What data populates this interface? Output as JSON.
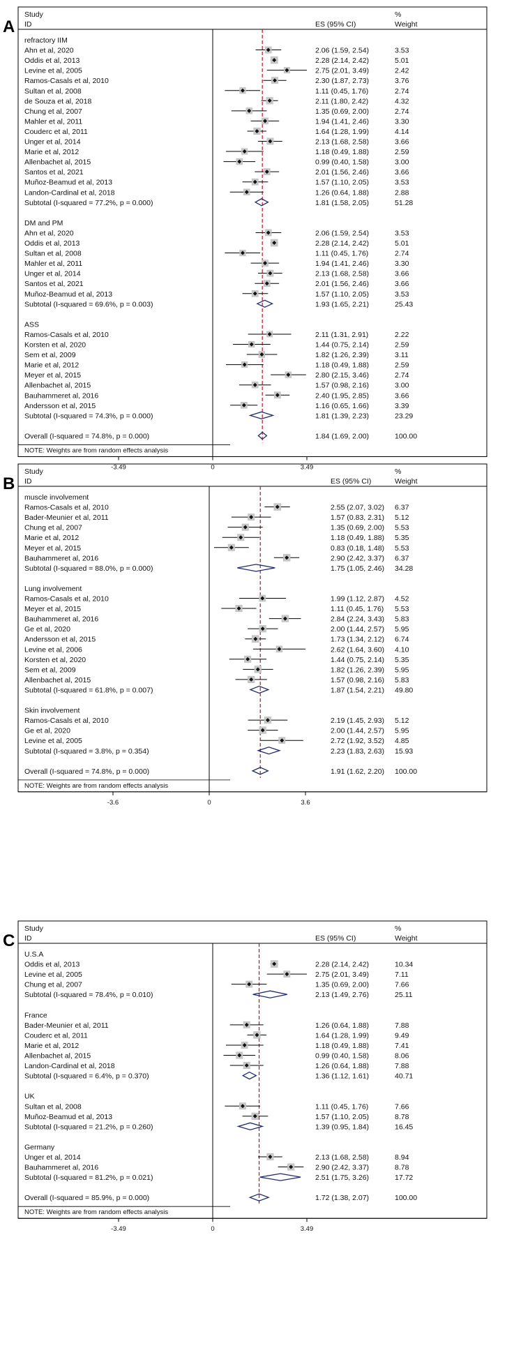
{
  "chart_data": [
    {
      "type": "forest",
      "panel_label": "A",
      "header": {
        "study": "Study",
        "id": "ID",
        "es": "ES (95% CI)",
        "pct": "%",
        "weight": "Weight"
      },
      "xlim": [
        -3.49,
        3.49
      ],
      "ticks": [
        {
          "value": -3.49,
          "label": "-3.49"
        },
        {
          "value": 0,
          "label": "0"
        },
        {
          "value": 3.49,
          "label": "3.49"
        }
      ],
      "reference_line": 1.84,
      "groups": [
        {
          "name": "refractory IIM",
          "studies": [
            {
              "label": "Ahn et al, 2020",
              "es": 2.06,
              "lo": 1.59,
              "hi": 2.54,
              "ci": "2.06 (1.59, 2.54)",
              "weight": "3.53"
            },
            {
              "label": "Oddis et al, 2013",
              "es": 2.28,
              "lo": 2.14,
              "hi": 2.42,
              "ci": "2.28 (2.14, 2.42)",
              "weight": "5.01"
            },
            {
              "label": "Levine et al, 2005",
              "es": 2.75,
              "lo": 2.01,
              "hi": 3.49,
              "ci": "2.75 (2.01, 3.49)",
              "weight": "2.42"
            },
            {
              "label": "Ramos-Casals et al, 2010",
              "es": 2.3,
              "lo": 1.87,
              "hi": 2.73,
              "ci": "2.30 (1.87, 2.73)",
              "weight": "3.76"
            },
            {
              "label": "Sultan et al, 2008",
              "es": 1.11,
              "lo": 0.45,
              "hi": 1.76,
              "ci": "1.11 (0.45, 1.76)",
              "weight": "2.74"
            },
            {
              "label": "de Souza et al, 2018",
              "es": 2.11,
              "lo": 1.8,
              "hi": 2.42,
              "ci": "2.11 (1.80, 2.42)",
              "weight": "4.32"
            },
            {
              "label": "Chung et al, 2007",
              "es": 1.35,
              "lo": 0.69,
              "hi": 2.0,
              "ci": "1.35 (0.69, 2.00)",
              "weight": "2.74"
            },
            {
              "label": "Mahler et al, 2011",
              "es": 1.94,
              "lo": 1.41,
              "hi": 2.46,
              "ci": "1.94 (1.41, 2.46)",
              "weight": "3.30"
            },
            {
              "label": "Couderc et al, 2011",
              "es": 1.64,
              "lo": 1.28,
              "hi": 1.99,
              "ci": "1.64 (1.28, 1.99)",
              "weight": "4.14"
            },
            {
              "label": "Unger et al, 2014",
              "es": 2.13,
              "lo": 1.68,
              "hi": 2.58,
              "ci": "2.13 (1.68, 2.58)",
              "weight": "3.66"
            },
            {
              "label": "Marie et al, 2012",
              "es": 1.18,
              "lo": 0.49,
              "hi": 1.88,
              "ci": "1.18 (0.49, 1.88)",
              "weight": "2.59"
            },
            {
              "label": "Allenbachet al, 2015",
              "es": 0.99,
              "lo": 0.4,
              "hi": 1.58,
              "ci": "0.99 (0.40, 1.58)",
              "weight": "3.00"
            },
            {
              "label": "Santos et al, 2021",
              "es": 2.01,
              "lo": 1.56,
              "hi": 2.46,
              "ci": "2.01 (1.56, 2.46)",
              "weight": "3.66"
            },
            {
              "label": "Muñoz-Beamud et al, 2013",
              "es": 1.57,
              "lo": 1.1,
              "hi": 2.05,
              "ci": "1.57 (1.10, 2.05)",
              "weight": "3.53"
            },
            {
              "label": "Landon-Cardinal et al, 2018",
              "es": 1.26,
              "lo": 0.64,
              "hi": 1.88,
              "ci": "1.26 (0.64, 1.88)",
              "weight": "2.88"
            }
          ],
          "subtotal": {
            "label": "Subtotal  (I-squared = 77.2%, p = 0.000)",
            "es": 1.81,
            "lo": 1.58,
            "hi": 2.05,
            "ci": "1.81 (1.58, 2.05)",
            "weight": "51.28"
          }
        },
        {
          "name": "DM and PM",
          "studies": [
            {
              "label": "Ahn et al, 2020",
              "es": 2.06,
              "lo": 1.59,
              "hi": 2.54,
              "ci": "2.06 (1.59, 2.54)",
              "weight": "3.53"
            },
            {
              "label": "Oddis et al, 2013",
              "es": 2.28,
              "lo": 2.14,
              "hi": 2.42,
              "ci": "2.28 (2.14, 2.42)",
              "weight": "5.01"
            },
            {
              "label": "Sultan et al, 2008",
              "es": 1.11,
              "lo": 0.45,
              "hi": 1.76,
              "ci": "1.11 (0.45, 1.76)",
              "weight": "2.74"
            },
            {
              "label": "Mahler et al, 2011",
              "es": 1.94,
              "lo": 1.41,
              "hi": 2.46,
              "ci": "1.94 (1.41, 2.46)",
              "weight": "3.30"
            },
            {
              "label": "Unger et al, 2014",
              "es": 2.13,
              "lo": 1.68,
              "hi": 2.58,
              "ci": "2.13 (1.68, 2.58)",
              "weight": "3.66"
            },
            {
              "label": "Santos et al, 2021",
              "es": 2.01,
              "lo": 1.56,
              "hi": 2.46,
              "ci": "2.01 (1.56, 2.46)",
              "weight": "3.66"
            },
            {
              "label": "Muñoz-Beamud et al, 2013",
              "es": 1.57,
              "lo": 1.1,
              "hi": 2.05,
              "ci": "1.57 (1.10, 2.05)",
              "weight": "3.53"
            }
          ],
          "subtotal": {
            "label": "Subtotal  (I-squared = 69.6%, p = 0.003)",
            "es": 1.93,
            "lo": 1.65,
            "hi": 2.21,
            "ci": "1.93 (1.65, 2.21)",
            "weight": "25.43"
          }
        },
        {
          "name": "ASS",
          "studies": [
            {
              "label": "Ramos-Casals et al, 2010",
              "es": 2.11,
              "lo": 1.31,
              "hi": 2.91,
              "ci": "2.11 (1.31, 2.91)",
              "weight": "2.22"
            },
            {
              "label": "Korsten et al, 2020",
              "es": 1.44,
              "lo": 0.75,
              "hi": 2.14,
              "ci": "1.44 (0.75, 2.14)",
              "weight": "2.59"
            },
            {
              "label": "Sem et al, 2009",
              "es": 1.82,
              "lo": 1.26,
              "hi": 2.39,
              "ci": "1.82 (1.26, 2.39)",
              "weight": "3.11"
            },
            {
              "label": "Marie et al, 2012",
              "es": 1.18,
              "lo": 0.49,
              "hi": 1.88,
              "ci": "1.18 (0.49, 1.88)",
              "weight": "2.59"
            },
            {
              "label": "Meyer et al, 2015",
              "es": 2.8,
              "lo": 2.15,
              "hi": 3.46,
              "ci": "2.80 (2.15, 3.46)",
              "weight": "2.74"
            },
            {
              "label": "Allenbachet al, 2015",
              "es": 1.57,
              "lo": 0.98,
              "hi": 2.16,
              "ci": "1.57 (0.98, 2.16)",
              "weight": "3.00"
            },
            {
              "label": "Bauhammeret al, 2016",
              "es": 2.4,
              "lo": 1.95,
              "hi": 2.85,
              "ci": "2.40 (1.95, 2.85)",
              "weight": "3.66"
            },
            {
              "label": "Andersson et al, 2015",
              "es": 1.16,
              "lo": 0.65,
              "hi": 1.66,
              "ci": "1.16 (0.65, 1.66)",
              "weight": "3.39"
            }
          ],
          "subtotal": {
            "label": "Subtotal  (I-squared = 74.3%, p = 0.000)",
            "es": 1.81,
            "lo": 1.39,
            "hi": 2.23,
            "ci": "1.81 (1.39, 2.23)",
            "weight": "23.29"
          }
        }
      ],
      "overall": {
        "label": "Overall  (I-squared = 74.8%, p = 0.000)",
        "es": 1.84,
        "lo": 1.69,
        "hi": 2.0,
        "ci": "1.84 (1.69, 2.00)",
        "weight": "100.00"
      },
      "note": "NOTE: Weights are from random effects analysis"
    },
    {
      "type": "forest",
      "panel_label": "B",
      "header": {
        "study": "Study",
        "id": "ID",
        "es": "ES (95% CI)",
        "pct": "%",
        "weight": "Weight"
      },
      "xlim": [
        -3.6,
        3.6
      ],
      "ticks": [
        {
          "value": -3.6,
          "label": "-3.6"
        },
        {
          "value": 0,
          "label": "0"
        },
        {
          "value": 3.6,
          "label": "3.6"
        }
      ],
      "reference_line": 1.91,
      "groups": [
        {
          "name": "muscle involvement",
          "studies": [
            {
              "label": "Ramos-Casals et al, 2010",
              "es": 2.55,
              "lo": 2.07,
              "hi": 3.02,
              "ci": "2.55 (2.07, 3.02)",
              "weight": "6.37"
            },
            {
              "label": "Bader-Meunier et al, 2011",
              "es": 1.57,
              "lo": 0.83,
              "hi": 2.31,
              "ci": "1.57 (0.83, 2.31)",
              "weight": "5.12"
            },
            {
              "label": "Chung et al, 2007",
              "es": 1.35,
              "lo": 0.69,
              "hi": 2.0,
              "ci": "1.35 (0.69, 2.00)",
              "weight": "5.53"
            },
            {
              "label": "Marie et al, 2012",
              "es": 1.18,
              "lo": 0.49,
              "hi": 1.88,
              "ci": "1.18 (0.49, 1.88)",
              "weight": "5.35"
            },
            {
              "label": "Meyer et al, 2015",
              "es": 0.83,
              "lo": 0.18,
              "hi": 1.48,
              "ci": "0.83 (0.18, 1.48)",
              "weight": "5.53"
            },
            {
              "label": "Bauhammeret al, 2016",
              "es": 2.9,
              "lo": 2.42,
              "hi": 3.37,
              "ci": "2.90 (2.42, 3.37)",
              "weight": "6.37"
            }
          ],
          "subtotal": {
            "label": "Subtotal  (I-squared = 88.0%, p = 0.000)",
            "es": 1.75,
            "lo": 1.05,
            "hi": 2.46,
            "ci": "1.75 (1.05, 2.46)",
            "weight": "34.28"
          }
        },
        {
          "name": "Lung involvement",
          "studies": [
            {
              "label": "Ramos-Casals et al, 2010",
              "es": 1.99,
              "lo": 1.12,
              "hi": 2.87,
              "ci": "1.99 (1.12, 2.87)",
              "weight": "4.52"
            },
            {
              "label": "Meyer et al, 2015",
              "es": 1.11,
              "lo": 0.45,
              "hi": 1.76,
              "ci": "1.11 (0.45, 1.76)",
              "weight": "5.53"
            },
            {
              "label": "Bauhammeret al, 2016",
              "es": 2.84,
              "lo": 2.24,
              "hi": 3.43,
              "ci": "2.84 (2.24, 3.43)",
              "weight": "5.83"
            },
            {
              "label": "Ge et al, 2020",
              "es": 2.0,
              "lo": 1.44,
              "hi": 2.57,
              "ci": "2.00 (1.44, 2.57)",
              "weight": "5.95"
            },
            {
              "label": "Andersson et al, 2015",
              "es": 1.73,
              "lo": 1.34,
              "hi": 2.12,
              "ci": "1.73 (1.34, 2.12)",
              "weight": "6.74"
            },
            {
              "label": "Levine et al, 2006",
              "es": 2.62,
              "lo": 1.64,
              "hi": 3.6,
              "ci": "2.62 (1.64, 3.60)",
              "weight": "4.10"
            },
            {
              "label": "Korsten et al, 2020",
              "es": 1.44,
              "lo": 0.75,
              "hi": 2.14,
              "ci": "1.44 (0.75, 2.14)",
              "weight": "5.35"
            },
            {
              "label": "Sem et al, 2009",
              "es": 1.82,
              "lo": 1.26,
              "hi": 2.39,
              "ci": "1.82 (1.26, 2.39)",
              "weight": "5.95"
            },
            {
              "label": "Allenbachet al, 2015",
              "es": 1.57,
              "lo": 0.98,
              "hi": 2.16,
              "ci": "1.57 (0.98, 2.16)",
              "weight": "5.83"
            }
          ],
          "subtotal": {
            "label": "Subtotal  (I-squared = 61.8%, p = 0.007)",
            "es": 1.87,
            "lo": 1.54,
            "hi": 2.21,
            "ci": "1.87 (1.54, 2.21)",
            "weight": "49.80"
          }
        },
        {
          "name": "Skin involvement",
          "studies": [
            {
              "label": "Ramos-Casals et al, 2010",
              "es": 2.19,
              "lo": 1.45,
              "hi": 2.93,
              "ci": "2.19 (1.45, 2.93)",
              "weight": "5.12"
            },
            {
              "label": "Ge et al, 2020",
              "es": 2.0,
              "lo": 1.44,
              "hi": 2.57,
              "ci": "2.00 (1.44, 2.57)",
              "weight": "5.95"
            },
            {
              "label": "Levine et al, 2005",
              "es": 2.72,
              "lo": 1.92,
              "hi": 3.52,
              "ci": "2.72 (1.92, 3.52)",
              "weight": "4.85"
            }
          ],
          "subtotal": {
            "label": "Subtotal  (I-squared = 3.8%, p = 0.354)",
            "es": 2.23,
            "lo": 1.83,
            "hi": 2.63,
            "ci": "2.23 (1.83, 2.63)",
            "weight": "15.93"
          }
        }
      ],
      "overall": {
        "label": "Overall  (I-squared = 74.8%, p = 0.000)",
        "es": 1.91,
        "lo": 1.62,
        "hi": 2.2,
        "ci": "1.91 (1.62, 2.20)",
        "weight": "100.00"
      },
      "note": "NOTE: Weights are from random effects analysis"
    },
    {
      "type": "forest",
      "panel_label": "C",
      "header": {
        "study": "Study",
        "id": "ID",
        "es": "ES (95% CI)",
        "pct": "%",
        "weight": "Weight"
      },
      "xlim": [
        -3.49,
        3.49
      ],
      "ticks": [
        {
          "value": -3.49,
          "label": "-3.49"
        },
        {
          "value": 0,
          "label": "0"
        },
        {
          "value": 3.49,
          "label": "3.49"
        }
      ],
      "reference_line": 1.72,
      "groups": [
        {
          "name": "U.S.A",
          "studies": [
            {
              "label": "Oddis et al, 2013",
              "es": 2.28,
              "lo": 2.14,
              "hi": 2.42,
              "ci": "2.28 (2.14, 2.42)",
              "weight": "10.34"
            },
            {
              "label": "Levine et al, 2005",
              "es": 2.75,
              "lo": 2.01,
              "hi": 3.49,
              "ci": "2.75 (2.01, 3.49)",
              "weight": "7.11"
            },
            {
              "label": "Chung et al, 2007",
              "es": 1.35,
              "lo": 0.69,
              "hi": 2.0,
              "ci": "1.35 (0.69, 2.00)",
              "weight": "7.66"
            }
          ],
          "subtotal": {
            "label": "Subtotal  (I-squared = 78.4%, p = 0.010)",
            "es": 2.13,
            "lo": 1.49,
            "hi": 2.76,
            "ci": "2.13 (1.49, 2.76)",
            "weight": "25.11"
          }
        },
        {
          "name": "France",
          "studies": [
            {
              "label": "Bader-Meunier et al, 2011",
              "es": 1.26,
              "lo": 0.64,
              "hi": 1.88,
              "ci": "1.26 (0.64, 1.88)",
              "weight": "7.88"
            },
            {
              "label": "Couderc et al, 2011",
              "es": 1.64,
              "lo": 1.28,
              "hi": 1.99,
              "ci": "1.64 (1.28, 1.99)",
              "weight": "9.49"
            },
            {
              "label": "Marie et al, 2012",
              "es": 1.18,
              "lo": 0.49,
              "hi": 1.88,
              "ci": "1.18 (0.49, 1.88)",
              "weight": "7.41"
            },
            {
              "label": "Allenbachet al, 2015",
              "es": 0.99,
              "lo": 0.4,
              "hi": 1.58,
              "ci": "0.99 (0.40, 1.58)",
              "weight": "8.06"
            },
            {
              "label": "Landon-Cardinal et al, 2018",
              "es": 1.26,
              "lo": 0.64,
              "hi": 1.88,
              "ci": "1.26 (0.64, 1.88)",
              "weight": "7.88"
            }
          ],
          "subtotal": {
            "label": "Subtotal  (I-squared = 6.4%, p = 0.370)",
            "es": 1.36,
            "lo": 1.12,
            "hi": 1.61,
            "ci": "1.36 (1.12, 1.61)",
            "weight": "40.71"
          }
        },
        {
          "name": "UK",
          "studies": [
            {
              "label": "Sultan et al, 2008",
              "es": 1.11,
              "lo": 0.45,
              "hi": 1.76,
              "ci": "1.11 (0.45, 1.76)",
              "weight": "7.66"
            },
            {
              "label": "Muñoz-Beamud et al, 2013",
              "es": 1.57,
              "lo": 1.1,
              "hi": 2.05,
              "ci": "1.57 (1.10, 2.05)",
              "weight": "8.78"
            }
          ],
          "subtotal": {
            "label": "Subtotal  (I-squared = 21.2%, p = 0.260)",
            "es": 1.39,
            "lo": 0.95,
            "hi": 1.84,
            "ci": "1.39 (0.95, 1.84)",
            "weight": "16.45"
          }
        },
        {
          "name": "Germany",
          "studies": [
            {
              "label": "Unger et al, 2014",
              "es": 2.13,
              "lo": 1.68,
              "hi": 2.58,
              "ci": "2.13 (1.68, 2.58)",
              "weight": "8.94"
            },
            {
              "label": "Bauhammeret al, 2016",
              "es": 2.9,
              "lo": 2.42,
              "hi": 3.37,
              "ci": "2.90 (2.42, 3.37)",
              "weight": "8.78"
            }
          ],
          "subtotal": {
            "label": "Subtotal  (I-squared = 81.2%, p = 0.021)",
            "es": 2.51,
            "lo": 1.75,
            "hi": 3.26,
            "ci": "2.51 (1.75, 3.26)",
            "weight": "17.72"
          }
        }
      ],
      "overall": {
        "label": "Overall  (I-squared = 85.9%, p = 0.000)",
        "es": 1.72,
        "lo": 1.38,
        "hi": 2.07,
        "ci": "1.72 (1.38, 2.07)",
        "weight": "100.00"
      },
      "note": "NOTE: Weights are from random effects analysis"
    }
  ]
}
